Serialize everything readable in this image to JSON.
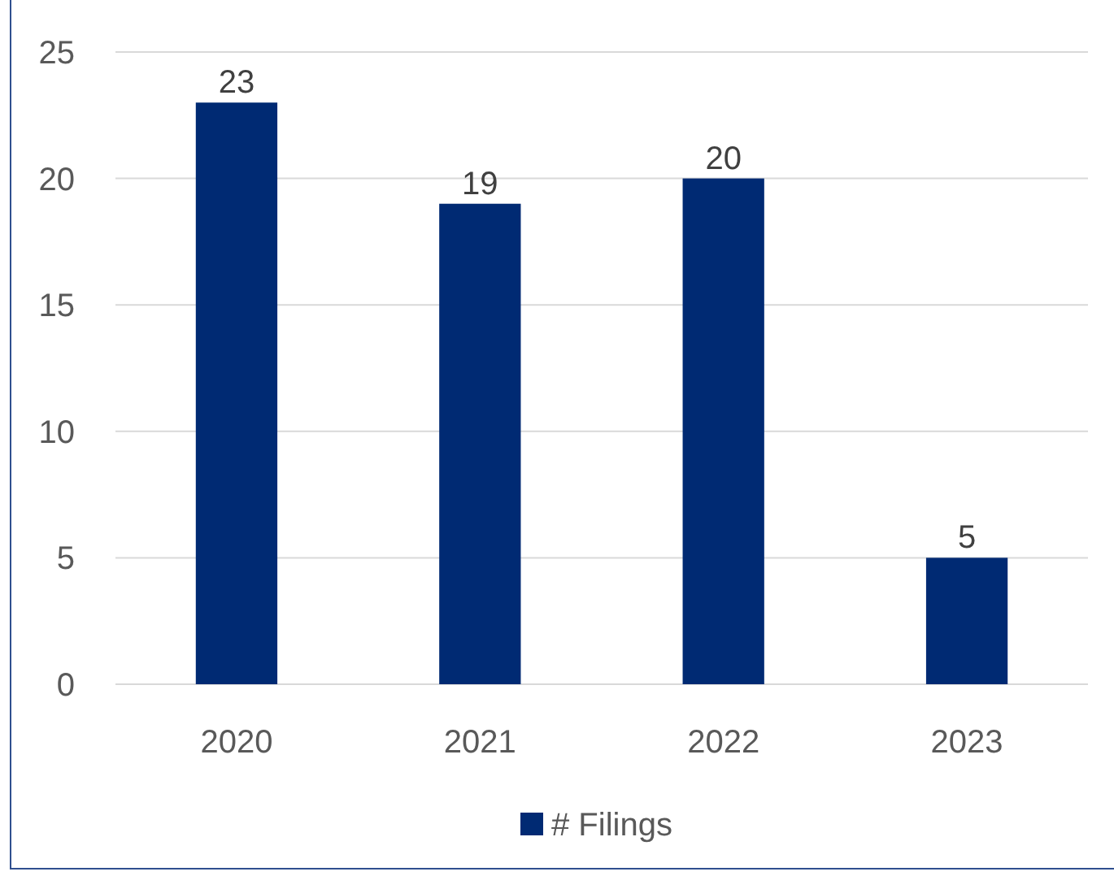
{
  "chart_data": {
    "type": "bar",
    "categories": [
      "2020",
      "2021",
      "2022",
      "2023"
    ],
    "series": [
      {
        "name": "# Filings",
        "color": "#002a73",
        "values": [
          23,
          19,
          20,
          5
        ]
      }
    ],
    "ylim": [
      0,
      25
    ],
    "yticks": [
      0,
      5,
      10,
      15,
      20,
      25
    ],
    "grid": "y",
    "legend": "bottom",
    "data_labels": true
  }
}
